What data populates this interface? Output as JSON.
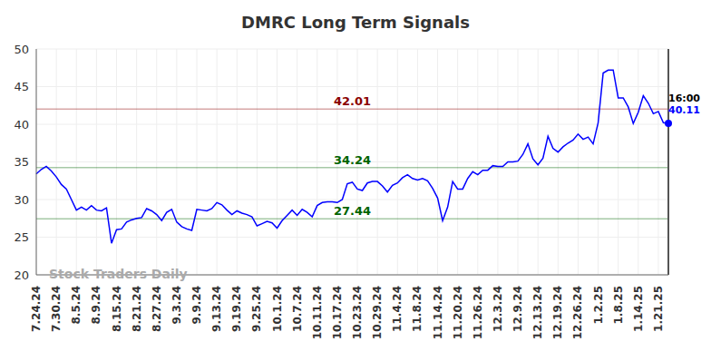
{
  "chart_data": {
    "type": "line",
    "title": "DMRC Long Term Signals",
    "watermark": "Stock Traders Daily",
    "end_time": "16:00",
    "color": "#0000ff",
    "grid": true,
    "ylim": [
      20,
      50
    ],
    "yticks": [
      20,
      25,
      30,
      35,
      40,
      45,
      50
    ],
    "horizontal_lines": [
      {
        "value": 42.01,
        "color": "#8b0000"
      },
      {
        "value": 34.24,
        "color": "#006400"
      },
      {
        "value": 27.44,
        "color": "#006400"
      }
    ],
    "categories": [
      "7.24.24",
      null,
      null,
      null,
      "7.30.24",
      null,
      null,
      null,
      "8.5.24",
      null,
      null,
      null,
      "8.9.24",
      null,
      null,
      null,
      "8.15.24",
      null,
      null,
      null,
      "8.21.24",
      null,
      null,
      null,
      "8.27.24",
      null,
      null,
      null,
      "9.3.24",
      null,
      null,
      null,
      "9.9.24",
      null,
      null,
      null,
      "9.13.24",
      null,
      null,
      null,
      "9.19.24",
      null,
      null,
      null,
      "9.25.24",
      null,
      null,
      null,
      "10.1.24",
      null,
      null,
      null,
      "10.7.24",
      null,
      null,
      null,
      "10.11.24",
      null,
      null,
      null,
      "10.17.24",
      null,
      null,
      null,
      "10.23.24",
      null,
      null,
      null,
      "10.29.24",
      null,
      null,
      null,
      "11.4.24",
      null,
      null,
      null,
      "11.8.24",
      null,
      null,
      null,
      "11.14.24",
      null,
      null,
      null,
      "11.20.24",
      null,
      null,
      null,
      "11.26.24",
      null,
      null,
      null,
      "12.3.24",
      null,
      null,
      null,
      "12.9.24",
      null,
      null,
      null,
      "12.13.24",
      null,
      null,
      null,
      "12.19.24",
      null,
      null,
      null,
      "12.26.24",
      null,
      null,
      null,
      "1.2.25",
      null,
      null,
      null,
      "1.8.25",
      null,
      null,
      null,
      "1.14.25",
      null,
      null,
      null,
      "1.21.25",
      null,
      null
    ],
    "values": [
      33.4,
      34.0,
      34.4,
      33.8,
      33.0,
      32.0,
      31.4,
      30.0,
      28.6,
      29.0,
      28.6,
      29.2,
      28.6,
      28.5,
      28.9,
      24.2,
      26.0,
      26.1,
      27.0,
      27.3,
      27.5,
      27.6,
      28.8,
      28.5,
      28.0,
      27.2,
      28.3,
      28.7,
      27.0,
      26.4,
      26.1,
      25.9,
      28.7,
      28.6,
      28.5,
      28.8,
      29.6,
      29.3,
      28.6,
      28.0,
      28.5,
      28.2,
      28.0,
      27.7,
      26.5,
      26.8,
      27.1,
      26.9,
      26.2,
      27.2,
      27.9,
      28.6,
      27.9,
      28.7,
      28.3,
      27.7,
      29.2,
      29.6,
      29.7,
      29.7,
      29.6,
      30.0,
      32.1,
      32.3,
      31.4,
      31.2,
      32.2,
      32.4,
      32.4,
      31.8,
      31.0,
      31.9,
      32.2,
      32.9,
      33.3,
      32.8,
      32.6,
      32.8,
      32.5,
      31.5,
      30.2,
      27.2,
      29.0,
      32.4,
      31.4,
      31.4,
      32.8,
      33.7,
      33.3,
      33.9,
      33.9,
      34.5,
      34.4,
      34.4,
      35.0,
      35.0,
      35.1,
      36.0,
      37.4,
      35.4,
      34.6,
      35.5,
      38.4,
      36.8,
      36.3,
      37.0,
      37.5,
      37.9,
      38.7,
      38.0,
      38.3,
      37.4,
      40.2,
      46.8,
      47.2,
      47.2,
      43.5,
      43.5,
      42.3,
      40.1,
      41.6,
      43.8,
      42.8,
      41.4,
      41.7,
      40.2,
      40.11
    ]
  }
}
